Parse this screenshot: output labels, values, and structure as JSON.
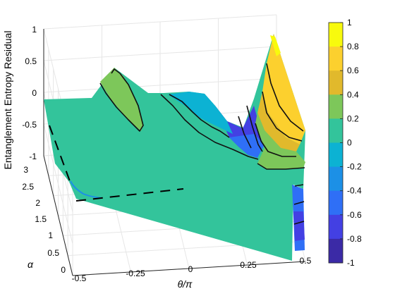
{
  "chart_data": {
    "type": "surface",
    "zlabel": "Entanglement Entropy Residual",
    "xlabel": "θ/π",
    "ylabel": "α",
    "x_ticks": [
      "-0.5",
      "-0.25",
      "0",
      "0.25",
      "0.5"
    ],
    "y_ticks": [
      "0",
      "0.5",
      "1",
      "1.5",
      "2",
      "2.5",
      "3"
    ],
    "z_ticks": [
      "1",
      "0.5",
      "0",
      "-0.5",
      "-1"
    ],
    "xlim": [
      -0.5,
      0.5
    ],
    "ylim": [
      0,
      3
    ],
    "zlim": [
      -1,
      1
    ],
    "colorbar": {
      "ticks": [
        "1",
        "0.8",
        "0.6",
        "0.4",
        "0.2",
        "0",
        "-0.2",
        "-0.4",
        "-0.6",
        "-0.8",
        "-1"
      ],
      "levels": [
        {
          "from": 0.8,
          "to": 1.0,
          "color": "#f8fa0d"
        },
        {
          "from": 0.6,
          "to": 0.8,
          "color": "#fcd02e"
        },
        {
          "from": 0.4,
          "to": 0.6,
          "color": "#e1b92c"
        },
        {
          "from": 0.2,
          "to": 0.4,
          "color": "#7dc75a"
        },
        {
          "from": 0.0,
          "to": 0.2,
          "color": "#33c49b"
        },
        {
          "from": -0.2,
          "to": 0.0,
          "color": "#0cb2d3"
        },
        {
          "from": -0.4,
          "to": -0.2,
          "color": "#1c90e6"
        },
        {
          "from": -0.6,
          "to": -0.4,
          "color": "#2f6ff6"
        },
        {
          "from": -0.8,
          "to": -0.6,
          "color": "#4340e3"
        },
        {
          "from": -1.0,
          "to": -0.8,
          "color": "#3b2aa6"
        }
      ]
    },
    "surface_colors": {
      "base": "#33c49b",
      "peak_left": "#7dc75a",
      "valley": "#0cb2d3",
      "deep": "#4340e3",
      "ridge_orange": "#fcd02e",
      "ridge_gold": "#e1b92c",
      "ridge_green": "#7dc75a",
      "ridge_yellow": "#f8fa0d"
    }
  }
}
